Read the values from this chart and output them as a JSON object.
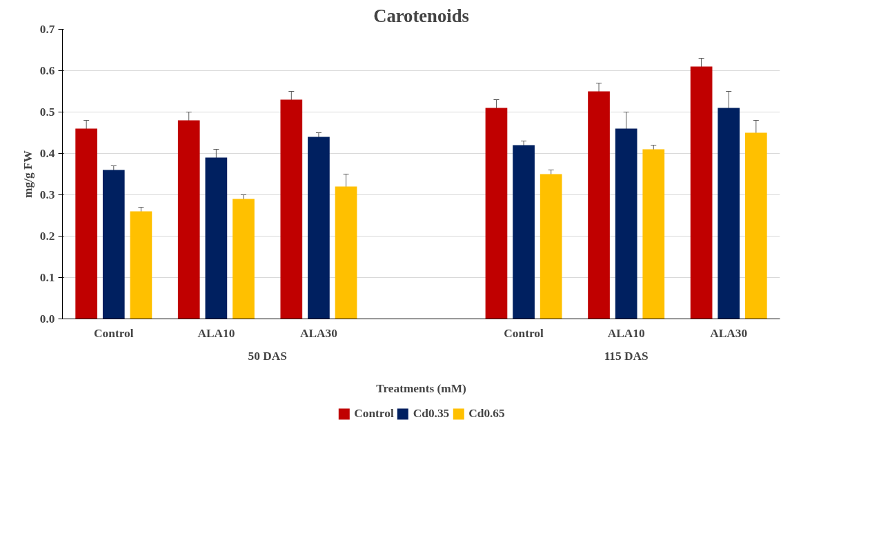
{
  "chart_data": {
    "type": "bar",
    "title": "Carotenoids",
    "xlabel": "Treatments (mM)",
    "ylabel": "mg/g FW",
    "categories": [
      "Control",
      "ALA10",
      "ALA30",
      null,
      "Control",
      "ALA10",
      "ALA30"
    ],
    "annotations": [
      "50 DAS",
      "115 DAS"
    ],
    "series": [
      {
        "name": "Control",
        "color": "#c00000",
        "values": [
          0.46,
          0.48,
          0.53,
          null,
          0.51,
          0.55,
          0.61
        ],
        "errors": [
          0.02,
          0.02,
          0.02,
          null,
          0.02,
          0.02,
          0.02
        ]
      },
      {
        "name": "Cd0.35",
        "color": "#002060",
        "values": [
          0.36,
          0.39,
          0.44,
          null,
          0.42,
          0.46,
          0.51
        ],
        "errors": [
          0.01,
          0.02,
          0.01,
          null,
          0.01,
          0.04,
          0.04
        ]
      },
      {
        "name": "Cd0.65",
        "color": "#ffc000",
        "values": [
          0.26,
          0.29,
          0.32,
          null,
          0.35,
          0.41,
          0.45
        ],
        "errors": [
          0.01,
          0.01,
          0.03,
          null,
          0.01,
          0.01,
          0.03
        ]
      }
    ],
    "ylim": [
      0,
      0.7
    ],
    "yticks": [
      {
        "value": 0,
        "label": "0.0"
      },
      0.1,
      0.2,
      0.3,
      0.4,
      0.5,
      0.6,
      0.7
    ],
    "grid": "y",
    "legend": "bottom"
  }
}
